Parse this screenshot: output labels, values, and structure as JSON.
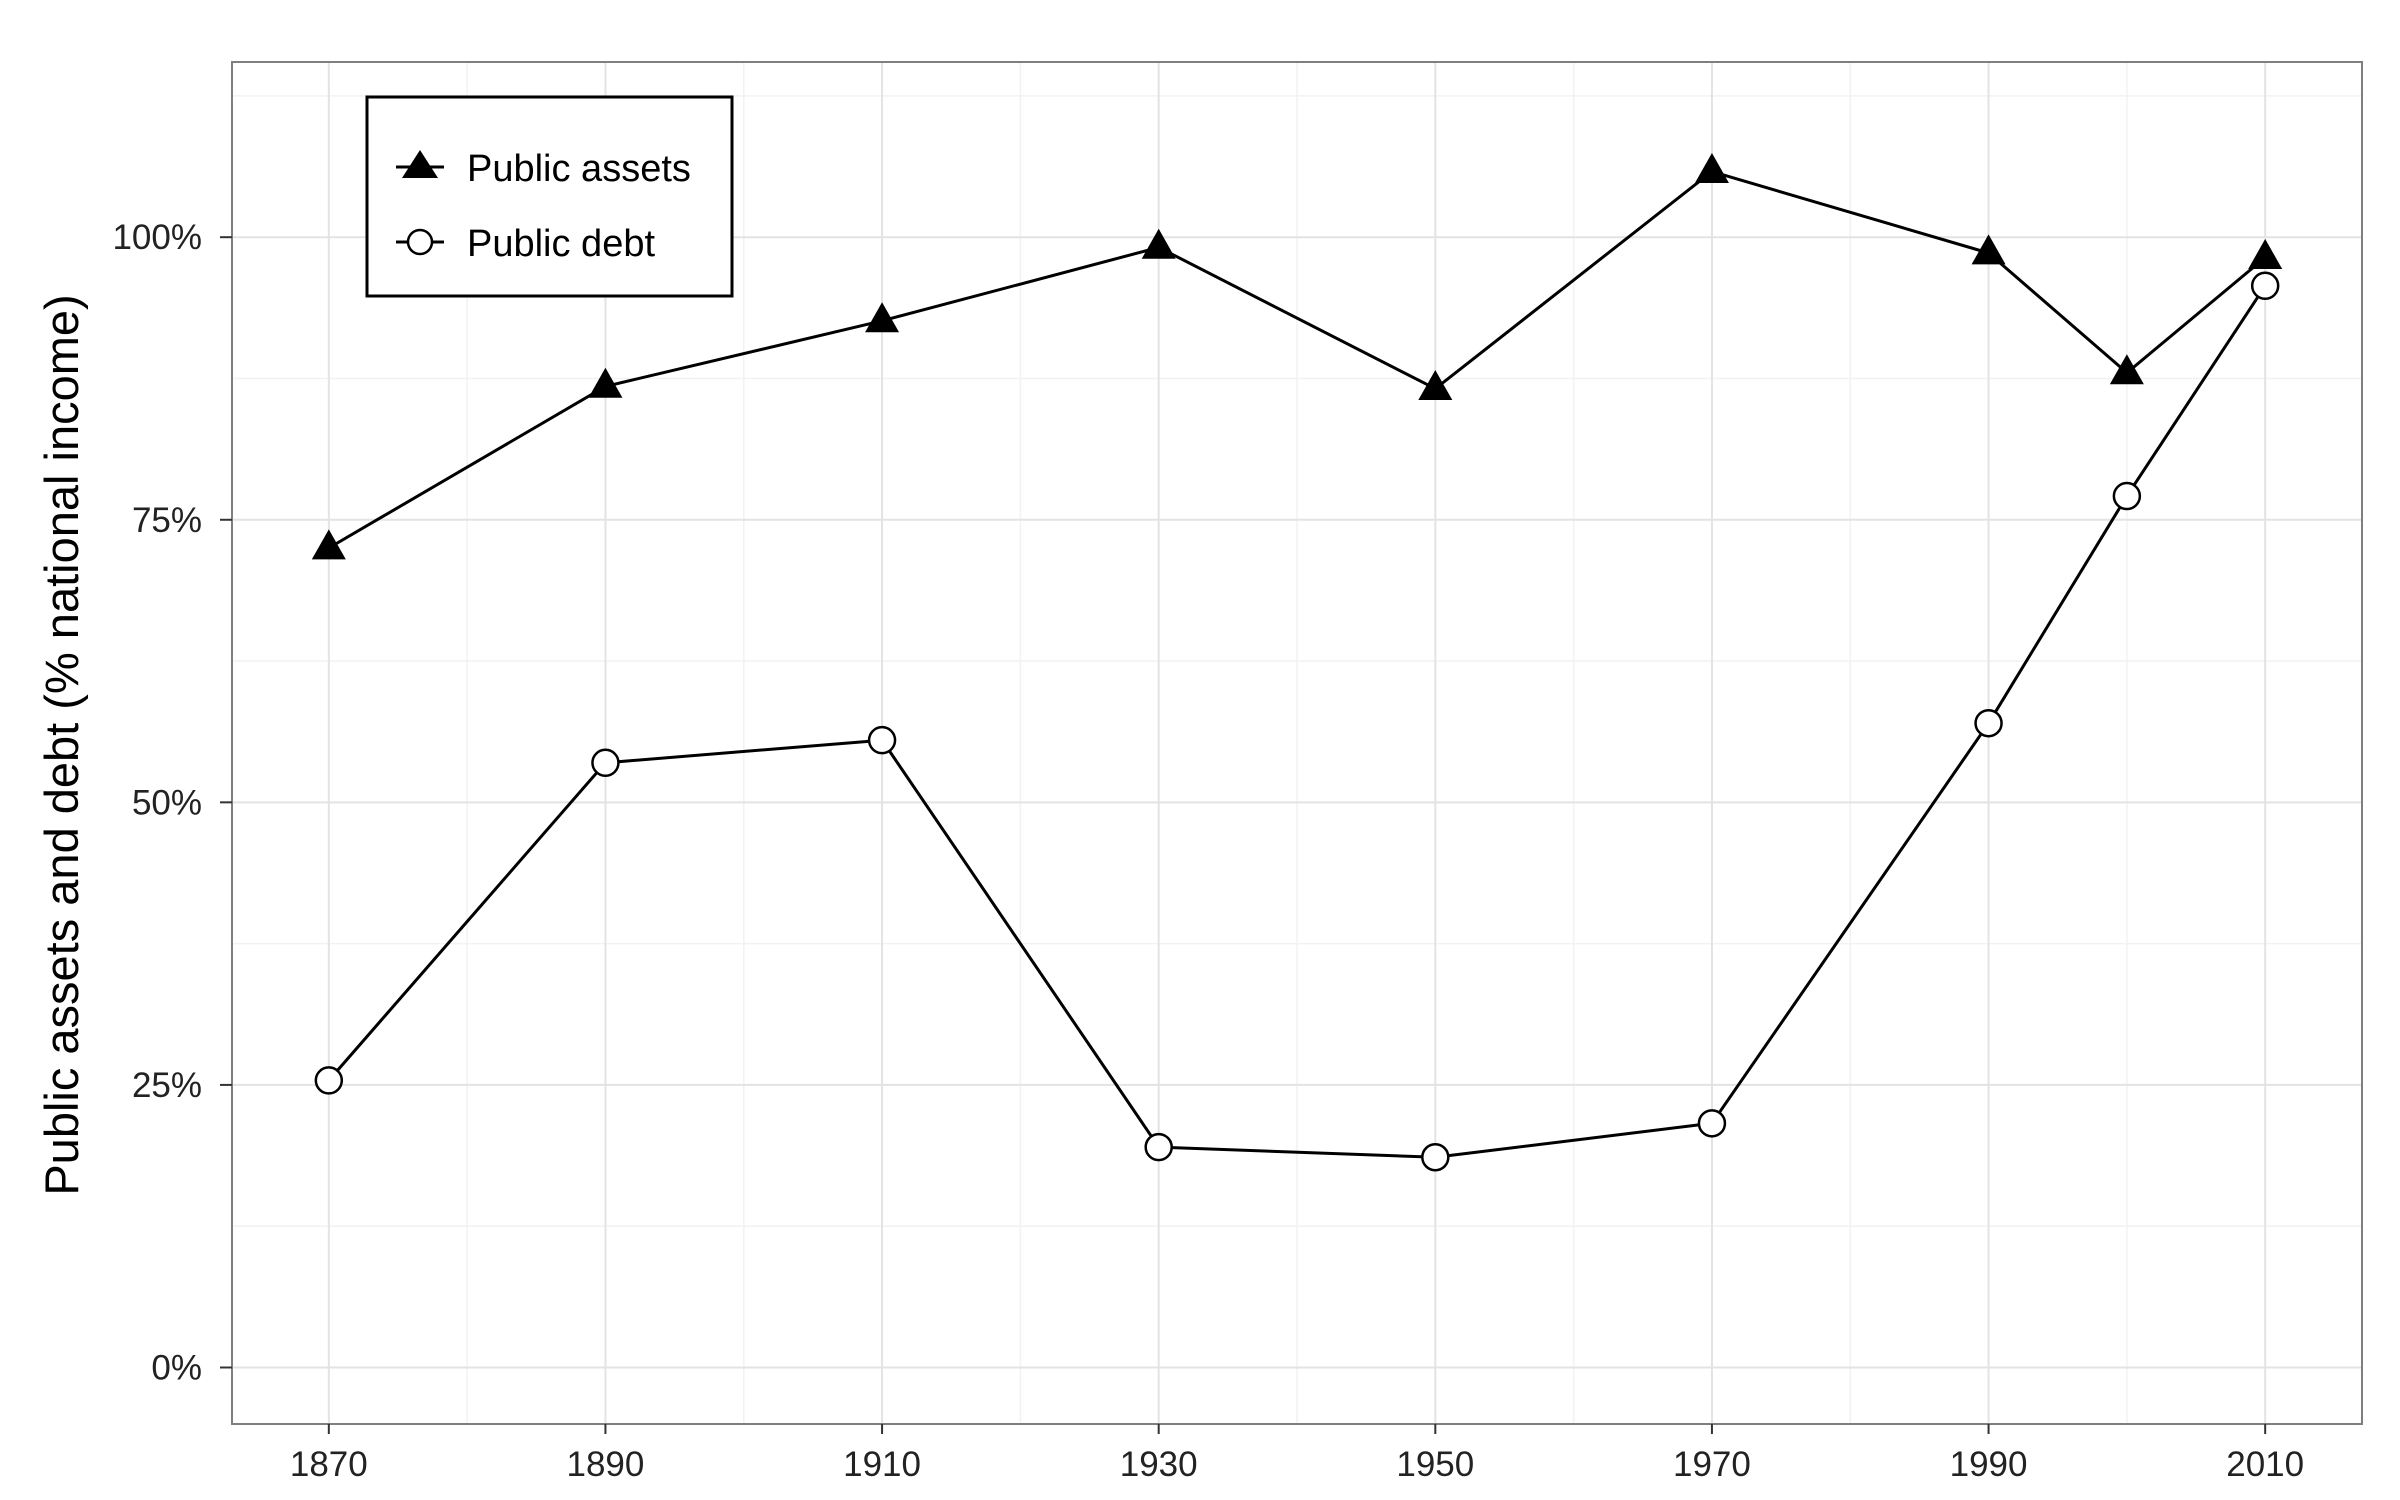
{
  "chart_data": {
    "type": "line",
    "title": "",
    "xlabel": "",
    "ylabel": "Public assets and debt (% national income)",
    "x": [
      1870,
      1890,
      1910,
      1930,
      1950,
      1970,
      1990,
      2000,
      2010
    ],
    "xlim": [
      1863,
      2017
    ],
    "ylim": [
      -0.05,
      1.155
    ],
    "x_ticks": [
      1870,
      1890,
      1910,
      1930,
      1950,
      1970,
      1990,
      2010
    ],
    "x_tick_labels": [
      "1870",
      "1890",
      "1910",
      "1930",
      "1950",
      "1970",
      "1990",
      "2010"
    ],
    "y_ticks": [
      0,
      0.25,
      0.5,
      0.75,
      1.0
    ],
    "y_tick_labels": [
      "0%",
      "25%",
      "50%",
      "75%",
      "100%"
    ],
    "grid": true,
    "legend_position": "top-left",
    "series": [
      {
        "name": "Public assets",
        "marker": "filled-triangle",
        "color": "#000000",
        "values": [
          0.725,
          0.868,
          0.926,
          0.991,
          0.866,
          1.058,
          0.986,
          0.88,
          0.982
        ]
      },
      {
        "name": "Public debt",
        "marker": "open-circle",
        "color": "#000000",
        "values": [
          0.254,
          0.535,
          0.555,
          0.195,
          0.186,
          0.216,
          0.57,
          0.771,
          0.957
        ]
      }
    ]
  }
}
